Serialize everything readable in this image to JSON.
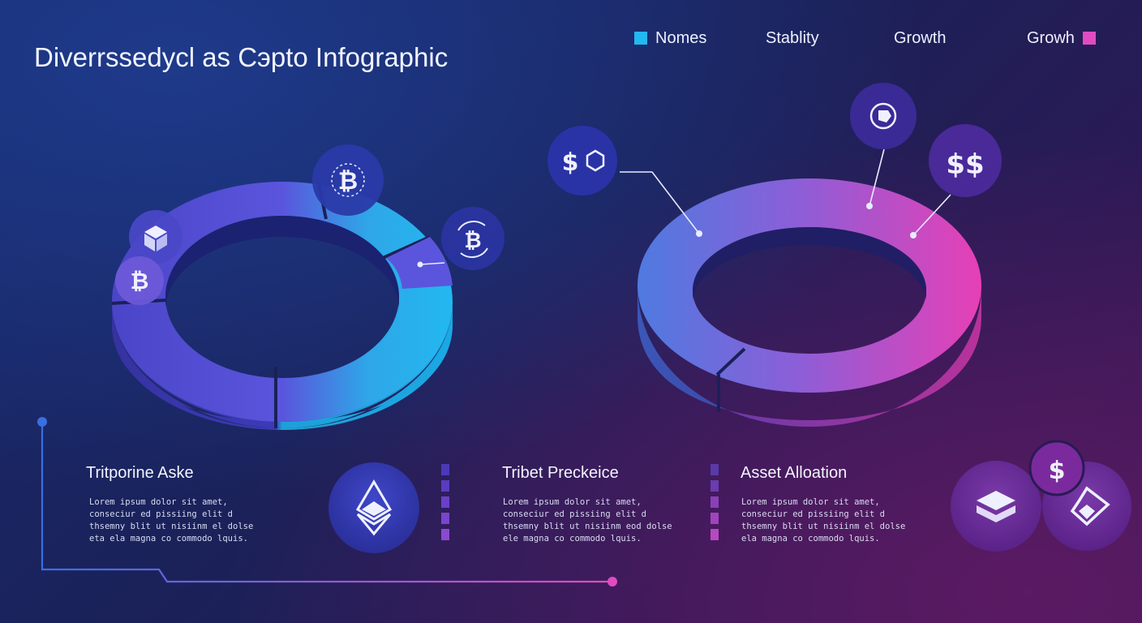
{
  "title": "Diverrssedycl as Cэpto Infographic",
  "legend": [
    {
      "label": "Nomes",
      "color": "#22b8f0"
    },
    {
      "label": "Stablity",
      "color": ""
    },
    {
      "label": "Growth",
      "color": ""
    },
    {
      "label": "Growh",
      "color": "#e14bc1"
    }
  ],
  "sections": [
    {
      "title": "Tritporine Aske",
      "body": "Lorem ipsum dolor sit amet, conseciur ed pissiing elit d thsemny blit ut nisiinm el dolse eta ela magna co commodo lquis."
    },
    {
      "title": "Tribet Preckeice",
      "body": "Lorem ipsum dolor sit amet, conseciur ed pissiing elit d thsemny blit ut nisiinm eod dolse ele magna co commodo lquis."
    },
    {
      "title": "Asset Alloation",
      "body": "Lorem ipsum dolor sit amet, conseciur ed pissiing elit d thsemny blit ut nisiinm el dolse ela magna co commodo lquis."
    }
  ],
  "icons": {
    "left_ring": [
      "cube-icon",
      "bitcoin-icon",
      "bitcoin-icon",
      "bitcoin-cycle-icon"
    ],
    "right_ring": [
      "dollar-hexagon-icon",
      "coin-swap-icon",
      "dollar-pair-icon"
    ],
    "bottom": [
      "ethereum-icon",
      "stack-icon",
      "dollar-icon",
      "shield-layers-icon"
    ]
  },
  "glyphs": {
    "btc": "₿",
    "dollar": "$",
    "dollars": "$$",
    "dollar_only": "$"
  },
  "colors": {
    "cyan": "#22b8f0",
    "blue": "#3b6ee0",
    "violet": "#5b4ad8",
    "magenta": "#e14bc1",
    "purple": "#8a4fd6"
  }
}
